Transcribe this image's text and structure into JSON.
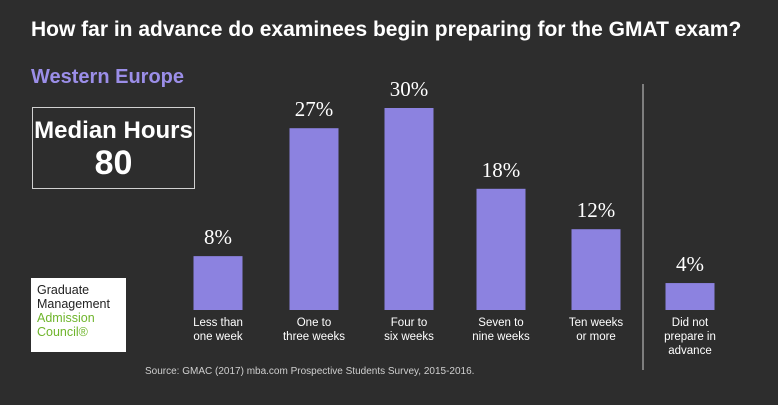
{
  "colors": {
    "background": "#2d2d2d",
    "bar": "#8c82e0",
    "subtitle": "#9b8ee8",
    "logo_green": "#6fb52c"
  },
  "median": {
    "label": "Median Hours",
    "value": "80"
  },
  "logo": {
    "line1": "Graduate",
    "line2": "Management",
    "line3": "Admission",
    "line4": "Council®"
  },
  "source": "Source: GMAC (2017) mba.com Prospective Students Survey, 2015-2016.",
  "chart_data": {
    "type": "bar",
    "title": "How far in advance do examinees begin preparing for the GMAT exam?",
    "subtitle": "Western Europe",
    "unit": "%",
    "ylim": [
      0,
      30
    ],
    "grid": false,
    "categories": [
      [
        "Less than",
        "one week"
      ],
      [
        "One to",
        "three weeks"
      ],
      [
        "Four to",
        "six weeks"
      ],
      [
        "Seven to",
        "nine weeks"
      ],
      [
        "Ten weeks",
        "or more"
      ],
      [
        "Did not",
        "prepare in",
        "advance"
      ]
    ],
    "values": [
      8,
      27,
      30,
      18,
      12,
      4
    ],
    "value_labels": [
      "8%",
      "27%",
      "30%",
      "18%",
      "12%",
      "4%"
    ],
    "xlabel": "",
    "ylabel": ""
  }
}
